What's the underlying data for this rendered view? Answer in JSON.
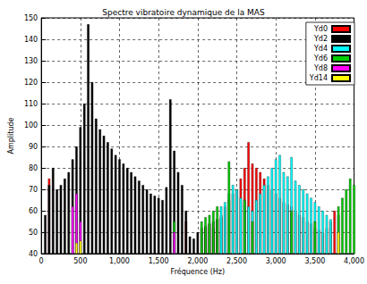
{
  "chart_data": {
    "type": "bar",
    "title": "Spectre vibratoire dynamique de la MAS",
    "x_label": "Fréquence (Hz)",
    "y_label": "Amplitude",
    "x": [
      0,
      50,
      100,
      150,
      200,
      250,
      300,
      350,
      400,
      450,
      500,
      550,
      600,
      650,
      700,
      750,
      800,
      850,
      900,
      950,
      1000,
      1050,
      1100,
      1150,
      1200,
      1250,
      1300,
      1350,
      1400,
      1450,
      1500,
      1550,
      1600,
      1650,
      1700,
      1750,
      1800,
      1850,
      1900,
      1950,
      2000,
      2050,
      2100,
      2150,
      2200,
      2250,
      2300,
      2350,
      2400,
      2450,
      2500,
      2550,
      2600,
      2650,
      2700,
      2750,
      2800,
      2850,
      2900,
      2950,
      3000,
      3050,
      3100,
      3150,
      3200,
      3250,
      3300,
      3350,
      3400,
      3450,
      3500,
      3550,
      3600,
      3650,
      3700,
      3750,
      3800,
      3850,
      3900,
      3950,
      4000
    ],
    "series": [
      {
        "name": "Yd0",
        "color": "#ff0000",
        "values": [
          null,
          null,
          75,
          null,
          null,
          null,
          null,
          null,
          null,
          null,
          null,
          null,
          null,
          null,
          null,
          null,
          null,
          null,
          null,
          null,
          null,
          null,
          null,
          null,
          null,
          null,
          null,
          null,
          null,
          null,
          null,
          null,
          null,
          null,
          null,
          null,
          null,
          55,
          null,
          null,
          null,
          null,
          52,
          54,
          52,
          56,
          58,
          62,
          65,
          68,
          70,
          75,
          80,
          92,
          82,
          80,
          78,
          75,
          72,
          70,
          68,
          66,
          64,
          63,
          62,
          60,
          58,
          57,
          55,
          54,
          52,
          51,
          50,
          52,
          55,
          60,
          58,
          null,
          null,
          null,
          null
        ]
      },
      {
        "name": "Yd2",
        "color": "#000000",
        "values": [
          null,
          58,
          72,
          80,
          70,
          72,
          75,
          78,
          84,
          90,
          99,
          110,
          147,
          120,
          103,
          98,
          95,
          92,
          89,
          86,
          84,
          82,
          80,
          78,
          76,
          74,
          72,
          70,
          68,
          67,
          66,
          65,
          71,
          112,
          88,
          78,
          72,
          60,
          48,
          47,
          50,
          52,
          53,
          54,
          55,
          56,
          57,
          null,
          null,
          null,
          null,
          null,
          null,
          null,
          null,
          null,
          null,
          null,
          null,
          null,
          null,
          null,
          null,
          null,
          null,
          null,
          null,
          null,
          null,
          null,
          null,
          null,
          null,
          null,
          null,
          null,
          null,
          null,
          null,
          null,
          null
        ]
      },
      {
        "name": "Yd4",
        "color": "#00ffff",
        "values": [
          null,
          null,
          null,
          null,
          null,
          null,
          null,
          null,
          null,
          null,
          null,
          null,
          null,
          null,
          null,
          null,
          null,
          null,
          null,
          null,
          null,
          null,
          null,
          null,
          null,
          null,
          null,
          null,
          null,
          null,
          null,
          null,
          null,
          null,
          null,
          null,
          null,
          null,
          null,
          null,
          null,
          null,
          null,
          null,
          null,
          null,
          62,
          64,
          68,
          72,
          70,
          66,
          64,
          62,
          60,
          65,
          68,
          72,
          76,
          80,
          84,
          86,
          78,
          76,
          85,
          74,
          72,
          70,
          68,
          66,
          64,
          62,
          60,
          58,
          56,
          null,
          null,
          null,
          null,
          null,
          null
        ]
      },
      {
        "name": "Yd6",
        "color": "#00cc00",
        "values": [
          null,
          null,
          null,
          null,
          null,
          null,
          null,
          null,
          null,
          null,
          null,
          null,
          null,
          null,
          null,
          null,
          null,
          null,
          null,
          null,
          null,
          null,
          null,
          null,
          null,
          null,
          null,
          null,
          null,
          null,
          null,
          null,
          null,
          null,
          55,
          null,
          null,
          null,
          null,
          null,
          null,
          55,
          57,
          58,
          60,
          62,
          null,
          null,
          83,
          null,
          null,
          null,
          65,
          null,
          55,
          null,
          null,
          null,
          null,
          null,
          null,
          null,
          null,
          null,
          60,
          null,
          null,
          null,
          null,
          null,
          55,
          null,
          null,
          null,
          null,
          null,
          62,
          66,
          70,
          75,
          72
        ]
      },
      {
        "name": "Yd8",
        "color": "#ff00ff",
        "values": [
          null,
          null,
          null,
          null,
          null,
          null,
          null,
          null,
          62,
          68,
          55,
          null,
          null,
          null,
          null,
          null,
          null,
          null,
          null,
          null,
          null,
          null,
          null,
          null,
          null,
          null,
          null,
          null,
          null,
          null,
          null,
          null,
          null,
          null,
          50,
          null,
          null,
          null,
          null,
          null,
          null,
          null,
          null,
          null,
          null,
          null,
          null,
          null,
          null,
          null,
          null,
          null,
          null,
          null,
          null,
          null,
          null,
          null,
          null,
          null,
          null,
          null,
          null,
          null,
          null,
          null,
          null,
          null,
          null,
          null,
          null,
          null,
          null,
          null,
          null,
          null,
          null,
          null,
          null,
          null,
          null
        ]
      },
      {
        "name": "Yd14",
        "color": "#ffff00",
        "values": [
          null,
          null,
          null,
          null,
          null,
          null,
          null,
          null,
          null,
          45,
          46,
          null,
          null,
          null,
          null,
          null,
          null,
          null,
          null,
          null,
          null,
          null,
          null,
          null,
          null,
          null,
          null,
          null,
          null,
          null,
          null,
          null,
          null,
          null,
          null,
          null,
          null,
          null,
          null,
          null,
          null,
          null,
          null,
          null,
          null,
          null,
          null,
          null,
          null,
          null,
          null,
          null,
          null,
          null,
          null,
          null,
          null,
          null,
          null,
          null,
          null,
          null,
          null,
          null,
          null,
          null,
          null,
          null,
          null,
          null,
          null,
          null,
          null,
          null,
          null,
          null,
          50,
          null,
          null,
          null,
          null
        ]
      }
    ],
    "xlim": [
      0,
      4000
    ],
    "xticks": [
      0,
      500,
      1000,
      1500,
      2000,
      2500,
      3000,
      3500,
      4000
    ],
    "ylim": [
      40,
      150
    ],
    "yticks": [
      40,
      50,
      60,
      70,
      80,
      90,
      100,
      110,
      120,
      130,
      140,
      150
    ],
    "grid": true,
    "legend": "upper right"
  }
}
